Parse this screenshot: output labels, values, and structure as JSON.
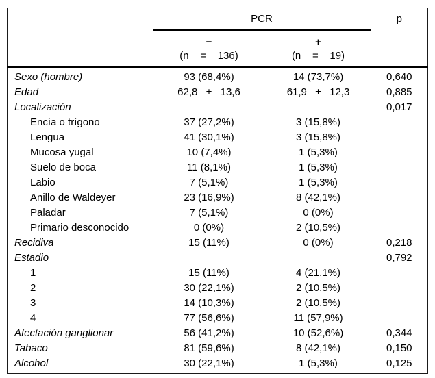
{
  "table": {
    "header": {
      "group": "PCR",
      "p": "p",
      "neg_sign": "−",
      "pos_sign": "+",
      "neg_n": "(n    =    136)",
      "pos_n": "(n    =    19)"
    },
    "rows": [
      {
        "label": "Sexo (hombre)",
        "neg": "93 (68,4%)",
        "pos": "14 (73,7%)",
        "p": "0,640"
      },
      {
        "label": "Edad",
        "neg": "62,8   ±   13,6",
        "pos": "61,9   ±   12,3",
        "p": "0,885"
      },
      {
        "label": "Localización",
        "neg": "",
        "pos": "",
        "p": "0,017"
      },
      {
        "label": "Encía o trígono",
        "neg": "37 (27,2%)",
        "pos": "3 (15,8%)",
        "p": ""
      },
      {
        "label": "Lengua",
        "neg": "41 (30,1%)",
        "pos": "3 (15,8%)",
        "p": ""
      },
      {
        "label": "Mucosa yugal",
        "neg": "10 (7,4%)",
        "pos": "1 (5,3%)",
        "p": ""
      },
      {
        "label": "Suelo de boca",
        "neg": "11 (8,1%)",
        "pos": "1 (5,3%)",
        "p": ""
      },
      {
        "label": "Labio",
        "neg": "7 (5,1%)",
        "pos": "1 (5,3%)",
        "p": ""
      },
      {
        "label": "Anillo de Waldeyer",
        "neg": "23 (16,9%)",
        "pos": "8 (42,1%)",
        "p": ""
      },
      {
        "label": "Paladar",
        "neg": "7 (5,1%)",
        "pos": "0 (0%)",
        "p": ""
      },
      {
        "label": "Primario desconocido",
        "neg": "0 (0%)",
        "pos": "2 (10,5%)",
        "p": ""
      },
      {
        "label": "Recidiva",
        "neg": "15 (11%)",
        "pos": "0 (0%)",
        "p": "0,218"
      },
      {
        "label": "Estadio",
        "neg": "",
        "pos": "",
        "p": "0,792"
      },
      {
        "label": "1",
        "neg": "15 (11%)",
        "pos": "4 (21,1%)",
        "p": ""
      },
      {
        "label": "2",
        "neg": "30 (22,1%)",
        "pos": "2 (10,5%)",
        "p": ""
      },
      {
        "label": "3",
        "neg": "14 (10,3%)",
        "pos": "2 (10,5%)",
        "p": ""
      },
      {
        "label": "4",
        "neg": "77 (56,6%)",
        "pos": "11 (57,9%)",
        "p": ""
      },
      {
        "label": "Afectación ganglionar",
        "neg": "56 (41,2%)",
        "pos": "10 (52,6%)",
        "p": "0,344"
      },
      {
        "label": "Tabaco",
        "neg": "81 (59,6%)",
        "pos": "8 (42,1%)",
        "p": "0,150"
      },
      {
        "label": "Alcohol",
        "neg": "30 (22,1%)",
        "pos": "1 (5,3%)",
        "p": "0,125"
      }
    ]
  },
  "colors": {
    "text": "#000000",
    "background": "#ffffff",
    "border": "#000000"
  }
}
